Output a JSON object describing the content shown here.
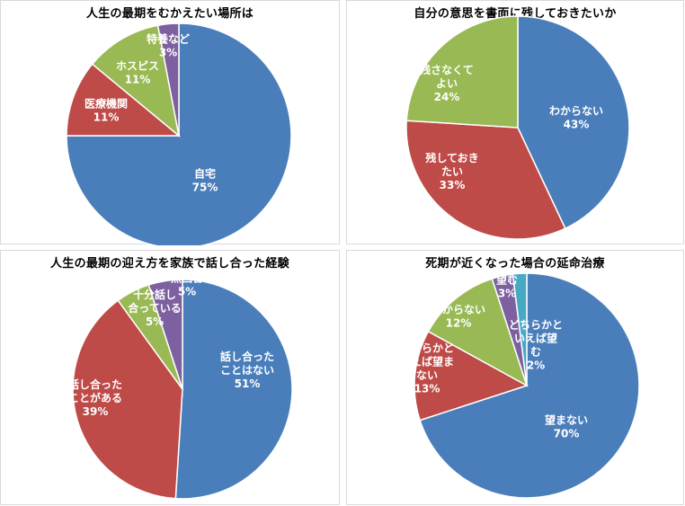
{
  "chart_data": [
    {
      "type": "pie",
      "title": "人生の最期をむかえたい場所は",
      "slices": [
        {
          "label": [
            "自宅",
            "75%"
          ],
          "value": 75,
          "color": "#4a7ebb",
          "text_color": "#ffffff"
        },
        {
          "label": [
            "医療機関",
            "11%"
          ],
          "value": 11,
          "color": "#be4b48",
          "text_color": "#ffffff"
        },
        {
          "label": [
            "ホスピス",
            "11%"
          ],
          "value": 11,
          "color": "#98b954",
          "text_color": "#ffffff"
        },
        {
          "label": [
            "特養など",
            "3%"
          ],
          "value": 3,
          "color": "#7d60a0",
          "text_color": "#ffffff"
        }
      ]
    },
    {
      "type": "pie",
      "title": "自分の意思を書面に残しておきたいか",
      "slices": [
        {
          "label": [
            "わからない",
            "43%"
          ],
          "value": 43,
          "color": "#4a7ebb",
          "text_color": "#ffffff"
        },
        {
          "label": [
            "残しておき",
            "たい",
            "33%"
          ],
          "value": 33,
          "color": "#be4b48",
          "text_color": "#ffffff"
        },
        {
          "label": [
            "残さなくて",
            "よい",
            "24%"
          ],
          "value": 24,
          "color": "#98b954",
          "text_color": "#ffffff"
        }
      ]
    },
    {
      "type": "pie",
      "title": "人生の最期の迎え方を家族で話し合った経験",
      "slices": [
        {
          "label": [
            "話し合った",
            "ことはない",
            "51%"
          ],
          "value": 51,
          "color": "#4a7ebb",
          "text_color": "#ffffff"
        },
        {
          "label": [
            "話し合った",
            "ことがある",
            "39%"
          ],
          "value": 39,
          "color": "#be4b48",
          "text_color": "#ffffff"
        },
        {
          "label": [
            "十分話し",
            "合っている",
            "5%"
          ],
          "value": 5,
          "color": "#98b954",
          "text_color": "#ffffff"
        },
        {
          "label": [
            "無回答",
            "5%"
          ],
          "value": 5,
          "color": "#7d60a0",
          "text_color": "#ffffff"
        }
      ]
    },
    {
      "type": "pie",
      "title": "死期が近くなった場合の延命治療",
      "slices": [
        {
          "label": [
            "望まない",
            "70%"
          ],
          "value": 70,
          "color": "#4a7ebb",
          "text_color": "#ffffff"
        },
        {
          "label": [
            "どちらかと",
            "いえば望ま",
            "ない",
            "13%"
          ],
          "value": 13,
          "color": "#be4b48",
          "text_color": "#ffffff"
        },
        {
          "label": [
            "わからない",
            "12%"
          ],
          "value": 12,
          "color": "#98b954",
          "text_color": "#ffffff"
        },
        {
          "label": [
            "望む",
            "3%"
          ],
          "value": 3,
          "color": "#7d60a0",
          "text_color": "#ffffff"
        },
        {
          "label": [
            "どちらかと",
            "いえば望",
            "む",
            "2%"
          ],
          "value": 2,
          "color": "#46aac5",
          "text_color": "#ffffff"
        }
      ]
    }
  ]
}
